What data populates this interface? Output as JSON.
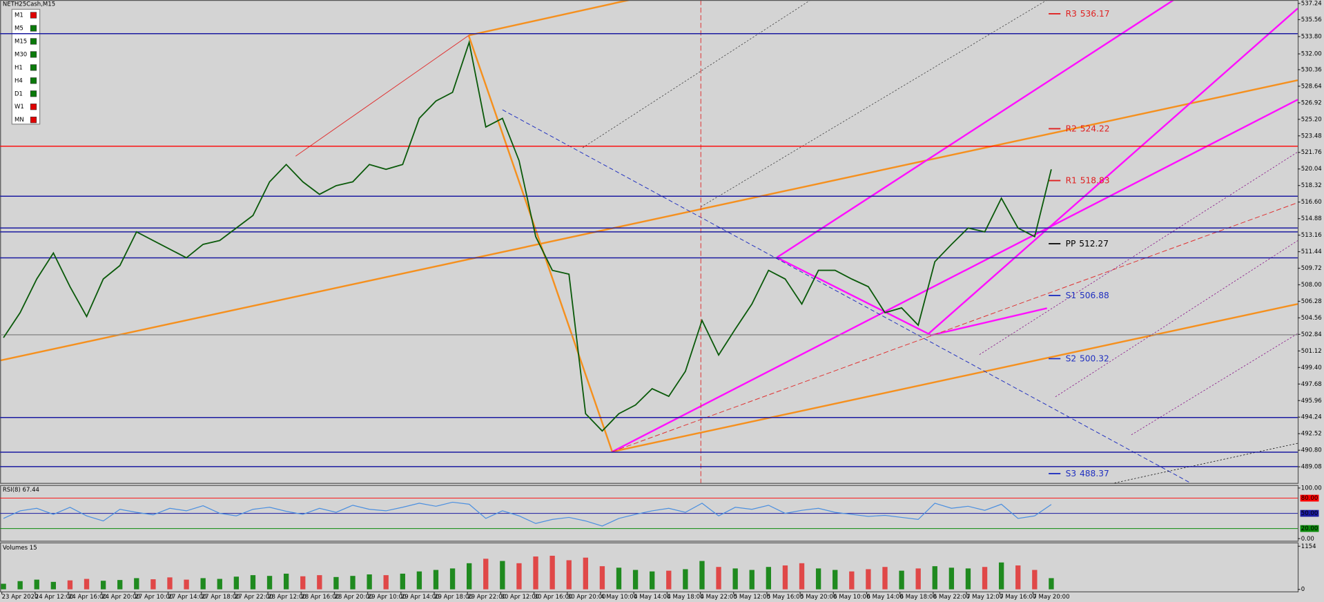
{
  "chart_data": {
    "type": "line",
    "title": "NETH25Cash,M15",
    "color": "#0b5a0b",
    "ylim": [
      487.4,
      537.6
    ],
    "yticks": [
      537.24,
      535.56,
      {
        "value": 533.8,
        "label": "533.80"
      },
      {
        "value": 532,
        "label": "532.00"
      },
      530.36,
      528.64,
      526.92,
      {
        "value": 525.2,
        "label": "525.20"
      },
      523.48,
      521.76,
      520.04,
      518.32,
      {
        "value": 516.6,
        "label": "516.60"
      },
      514.88,
      513.16,
      511.44,
      509.72,
      {
        "value": 508,
        "label": "508.00"
      },
      506.28,
      504.56,
      502.84,
      501.12,
      {
        "value": 499.4,
        "label": "499.40"
      },
      497.68,
      495.96,
      494.24,
      492.52,
      {
        "value": 490.8,
        "label": "490.80"
      },
      489.08
    ],
    "values": [
      502.5,
      505.1,
      508.6,
      511.3,
      507.8,
      504.7,
      508.6,
      510.0,
      513.5,
      512.6,
      511.7,
      510.8,
      512.2,
      512.6,
      513.9,
      515.2,
      518.7,
      520.5,
      518.7,
      517.4,
      518.3,
      518.7,
      520.5,
      520.0,
      520.5,
      525.3,
      527.1,
      528.0,
      533.2,
      524.4,
      525.3,
      520.9,
      513.0,
      509.5,
      509.1,
      494.6,
      492.8,
      494.6,
      495.5,
      497.2,
      496.4,
      499.0,
      504.3,
      500.7,
      503.4,
      506.0,
      509.5,
      508.6,
      506.0,
      509.5,
      509.5,
      508.6,
      507.8,
      505.1,
      505.6,
      503.8,
      510.4,
      512.2,
      513.9,
      513.5,
      517.0,
      513.9,
      513.0,
      520.0
    ],
    "time_labels": [
      "23 Apr 2020",
      "24 Apr 12:00",
      "24 Apr 16:00",
      "24 Apr 20:00",
      "27 Apr 10:00",
      "27 Apr 14:00",
      "27 Apr 18:00",
      "27 Apr 22:00",
      "28 Apr 12:00",
      "28 Apr 16:00",
      "28 Apr 20:00",
      "29 Apr 10:00",
      "29 Apr 14:00",
      "29 Apr 18:00",
      "29 Apr 22:00",
      "30 Apr 12:00",
      "30 Apr 16:00",
      "30 Apr 20:00",
      "4 May 10:00",
      "4 May 14:00",
      "4 May 18:00",
      "4 May 22:00",
      "5 May 12:00",
      "5 May 16:00",
      "5 May 20:00",
      "6 May 10:00",
      "6 May 14:00",
      "6 May 18:00",
      "6 May 22:00",
      "7 May 12:00",
      "7 May 16:00",
      "7 May 20:00"
    ],
    "pivots": [
      {
        "name": "R3",
        "value": 536.17,
        "color": "#e02020"
      },
      {
        "name": "R2",
        "value": 524.22,
        "color": "#e02020"
      },
      {
        "name": "R1",
        "value": 518.83,
        "color": "#e02020"
      },
      {
        "name": "PP",
        "value": 512.27,
        "color": "#000000"
      },
      {
        "name": "S1",
        "value": 506.88,
        "color": "#2030c0"
      },
      {
        "name": "S2",
        "value": 500.32,
        "color": "#2030c0"
      },
      {
        "name": "S3",
        "value": 488.37,
        "color": "#2030c0"
      }
    ],
    "hlines": [
      {
        "value": 534.1,
        "color": "#1a1aa0"
      },
      {
        "value": 522.4,
        "color": "#ff0000"
      },
      {
        "value": 517.2,
        "color": "#1a1aa0"
      },
      {
        "value": 513.9,
        "color": "#1a1aa0"
      },
      {
        "value": 513.5,
        "color": "#1a1aa0"
      },
      {
        "value": 510.8,
        "color": "#1a1aa0"
      },
      {
        "value": 502.8,
        "color": "#888888"
      },
      {
        "value": 494.2,
        "color": "#1a1aa0"
      },
      {
        "value": 490.6,
        "color": "#1a1aa0"
      },
      {
        "value": 489.1,
        "color": "#1a1aa0"
      }
    ],
    "timeframes": [
      {
        "label": "M1",
        "color": "#e00000"
      },
      {
        "label": "M5",
        "color": "#0a7a0a"
      },
      {
        "label": "M15",
        "color": "#0a7a0a"
      },
      {
        "label": "M30",
        "color": "#0a7a0a"
      },
      {
        "label": "H1",
        "color": "#0a7a0a"
      },
      {
        "label": "H4",
        "color": "#0a7a0a"
      },
      {
        "label": "D1",
        "color": "#0a7a0a"
      },
      {
        "label": "W1",
        "color": "#e00000"
      },
      {
        "label": "MN",
        "color": "#e00000"
      }
    ],
    "rsi": {
      "title": "RSI(8) 67.44",
      "color": "#4a8fe0",
      "ylim": [
        0,
        100
      ],
      "yticks": [
        {
          "value": 100,
          "label": "100.00"
        },
        {
          "value": 0,
          "label": "0.00"
        }
      ],
      "levels": [
        {
          "value": 80,
          "label": "80.00",
          "color": "#ff0000"
        },
        {
          "value": 50,
          "label": "50.00",
          "color": "#1a1aa0"
        },
        {
          "value": 20,
          "label": "20.00",
          "color": "#0a8a0a"
        }
      ],
      "values": [
        40,
        55,
        60,
        48,
        62,
        45,
        35,
        58,
        52,
        47,
        60,
        55,
        65,
        50,
        45,
        58,
        62,
        54,
        48,
        60,
        52,
        66,
        58,
        55,
        62,
        70,
        64,
        72,
        68,
        40,
        55,
        45,
        30,
        38,
        42,
        35,
        25,
        40,
        48,
        55,
        60,
        52,
        70,
        45,
        62,
        58,
        66,
        50,
        56,
        60,
        52,
        48,
        44,
        46,
        42,
        38,
        70,
        60,
        64,
        56,
        68,
        40,
        45,
        67.44
      ]
    },
    "volume": {
      "title": "Volumes 15",
      "up_color": "#1f8a1f",
      "down_color": "#e04848",
      "ylim": [
        0,
        1154
      ],
      "yticks": [
        1154,
        0
      ],
      "values": [
        150,
        220,
        260,
        200,
        240,
        280,
        230,
        250,
        300,
        270,
        320,
        260,
        300,
        280,
        340,
        380,
        360,
        420,
        350,
        380,
        330,
        360,
        400,
        380,
        420,
        480,
        520,
        560,
        700,
        820,
        760,
        700,
        880,
        900,
        780,
        850,
        620,
        580,
        520,
        480,
        500,
        540,
        760,
        600,
        560,
        520,
        600,
        640,
        700,
        560,
        520,
        480,
        540,
        600,
        500,
        560,
        620,
        580,
        560,
        600,
        720,
        640,
        520,
        300
      ]
    }
  }
}
